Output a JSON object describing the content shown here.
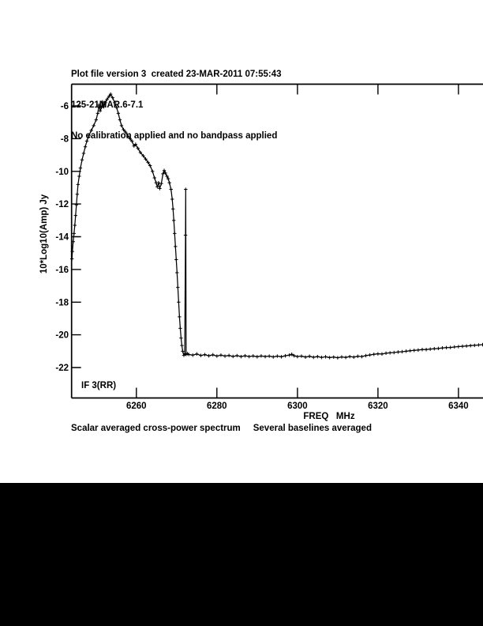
{
  "colors": {
    "background": "#ffffff",
    "ink": "#000000",
    "bottom_band": "#000000"
  },
  "chart_data": {
    "type": "line",
    "title_lines": [
      "Plot file version 3  created 23-MAR-2011 07:55:43",
      "125-21MAR.6-7.1",
      "No calibration applied and no bandpass applied"
    ],
    "caption": "Scalar averaged cross-power spectrum     Several baselines averaged",
    "annotation": "IF 3(RR)",
    "xlabel": "FREQ   MHz",
    "ylabel": "10*Log10(Amp) Jy",
    "xlim": [
      6243.9,
      6346.1
    ],
    "ylim": [
      -23.86,
      -4.67
    ],
    "xticks": [
      6260,
      6280,
      6300,
      6320,
      6340
    ],
    "yticks": [
      -6,
      -8,
      -10,
      -12,
      -14,
      -16,
      -18,
      -20,
      -22
    ],
    "grid": false,
    "legend": null,
    "line_color": "#000000",
    "marker": "plus",
    "series": [
      {
        "name": "scalar averaged cross-power spectrum",
        "points": [
          [
            6244.0,
            -15.35
          ],
          [
            6244.1,
            -14.9
          ],
          [
            6244.3,
            -14.3
          ],
          [
            6244.5,
            -13.8
          ],
          [
            6244.7,
            -13.3
          ],
          [
            6244.9,
            -12.7
          ],
          [
            6245.1,
            -12.05
          ],
          [
            6245.3,
            -11.4
          ],
          [
            6245.5,
            -10.8
          ],
          [
            6245.8,
            -10.3
          ],
          [
            6246.1,
            -9.8
          ],
          [
            6246.5,
            -9.3
          ],
          [
            6246.9,
            -8.9
          ],
          [
            6247.3,
            -8.5
          ],
          [
            6247.7,
            -8.15
          ],
          [
            6248.2,
            -7.8
          ],
          [
            6248.8,
            -7.5
          ],
          [
            6249.4,
            -7.2
          ],
          [
            6250.0,
            -6.85
          ],
          [
            6250.4,
            -6.45
          ],
          [
            6250.7,
            -5.95
          ],
          [
            6251.0,
            -6.3
          ],
          [
            6251.3,
            -6.1
          ],
          [
            6251.6,
            -5.75
          ],
          [
            6251.9,
            -6.05
          ],
          [
            6252.3,
            -5.8
          ],
          [
            6252.7,
            -5.6
          ],
          [
            6253.2,
            -5.42
          ],
          [
            6253.6,
            -5.28
          ],
          [
            6254.1,
            -5.5
          ],
          [
            6254.6,
            -5.8
          ],
          [
            6255.1,
            -6.1
          ],
          [
            6255.5,
            -6.45
          ],
          [
            6255.9,
            -6.85
          ],
          [
            6256.3,
            -7.2
          ],
          [
            6256.8,
            -7.45
          ],
          [
            6257.3,
            -7.6
          ],
          [
            6257.9,
            -7.85
          ],
          [
            6258.4,
            -8.0
          ],
          [
            6258.9,
            -8.15
          ],
          [
            6259.4,
            -8.45
          ],
          [
            6259.8,
            -8.35
          ],
          [
            6260.4,
            -8.6
          ],
          [
            6261.0,
            -8.85
          ],
          [
            6261.7,
            -9.05
          ],
          [
            6262.3,
            -9.25
          ],
          [
            6262.9,
            -9.45
          ],
          [
            6263.4,
            -9.65
          ],
          [
            6264.0,
            -10.0
          ],
          [
            6264.5,
            -10.4
          ],
          [
            6264.9,
            -10.7
          ],
          [
            6265.2,
            -10.95
          ],
          [
            6265.5,
            -10.7
          ],
          [
            6265.8,
            -11.05
          ],
          [
            6266.2,
            -10.75
          ],
          [
            6266.6,
            -10.15
          ],
          [
            6266.9,
            -9.95
          ],
          [
            6267.2,
            -10.1
          ],
          [
            6267.6,
            -10.3
          ],
          [
            6267.9,
            -10.45
          ],
          [
            6268.2,
            -10.7
          ],
          [
            6268.6,
            -11.1
          ],
          [
            6268.9,
            -11.7
          ],
          [
            6269.1,
            -12.3
          ],
          [
            6269.3,
            -13.0
          ],
          [
            6269.5,
            -13.8
          ],
          [
            6269.7,
            -14.6
          ],
          [
            6269.9,
            -15.4
          ],
          [
            6270.1,
            -16.2
          ],
          [
            6270.3,
            -17.1
          ],
          [
            6270.5,
            -18.0
          ],
          [
            6270.7,
            -18.9
          ],
          [
            6270.9,
            -19.6
          ],
          [
            6271.1,
            -20.2
          ],
          [
            6271.3,
            -20.65
          ],
          [
            6271.5,
            -21.0
          ],
          [
            6271.8,
            -21.25
          ],
          [
            6272.0,
            -21.15
          ],
          [
            6272.2,
            -13.9
          ],
          [
            6272.25,
            -11.1
          ],
          [
            6272.35,
            -21.2
          ],
          [
            6272.7,
            -21.15
          ],
          [
            6273.0,
            -21.2
          ],
          [
            6274,
            -21.24
          ],
          [
            6275,
            -21.17
          ],
          [
            6276,
            -21.26
          ],
          [
            6277,
            -21.21
          ],
          [
            6278,
            -21.28
          ],
          [
            6279,
            -21.22
          ],
          [
            6280,
            -21.3
          ],
          [
            6281,
            -21.24
          ],
          [
            6282,
            -21.3
          ],
          [
            6283,
            -21.26
          ],
          [
            6284,
            -21.32
          ],
          [
            6285,
            -21.27
          ],
          [
            6286,
            -21.33
          ],
          [
            6287,
            -21.28
          ],
          [
            6288,
            -21.33
          ],
          [
            6289,
            -21.29
          ],
          [
            6290,
            -21.34
          ],
          [
            6291,
            -21.29
          ],
          [
            6292,
            -21.33
          ],
          [
            6293,
            -21.3
          ],
          [
            6294,
            -21.35
          ],
          [
            6295,
            -21.3
          ],
          [
            6296,
            -21.34
          ],
          [
            6297,
            -21.28
          ],
          [
            6298,
            -21.24
          ],
          [
            6298.6,
            -21.19
          ],
          [
            6299.2,
            -21.28
          ],
          [
            6300,
            -21.33
          ],
          [
            6301,
            -21.3
          ],
          [
            6302,
            -21.36
          ],
          [
            6303,
            -21.31
          ],
          [
            6304,
            -21.37
          ],
          [
            6305,
            -21.33
          ],
          [
            6306,
            -21.38
          ],
          [
            6307,
            -21.34
          ],
          [
            6308,
            -21.39
          ],
          [
            6309,
            -21.36
          ],
          [
            6310,
            -21.4
          ],
          [
            6311,
            -21.35
          ],
          [
            6312,
            -21.38
          ],
          [
            6313,
            -21.33
          ],
          [
            6314,
            -21.36
          ],
          [
            6315,
            -21.31
          ],
          [
            6316,
            -21.33
          ],
          [
            6317,
            -21.27
          ],
          [
            6318,
            -21.23
          ],
          [
            6319,
            -21.19
          ],
          [
            6320,
            -21.16
          ],
          [
            6321,
            -21.17
          ],
          [
            6322,
            -21.12
          ],
          [
            6323,
            -21.1
          ],
          [
            6324,
            -21.08
          ],
          [
            6325,
            -21.05
          ],
          [
            6326,
            -21.03
          ],
          [
            6327,
            -21.0
          ],
          [
            6328,
            -20.97
          ],
          [
            6329,
            -20.95
          ],
          [
            6330,
            -20.93
          ],
          [
            6331,
            -20.9
          ],
          [
            6332,
            -20.9
          ],
          [
            6333,
            -20.87
          ],
          [
            6334,
            -20.85
          ],
          [
            6335,
            -20.83
          ],
          [
            6336,
            -20.8
          ],
          [
            6337,
            -20.78
          ],
          [
            6338,
            -20.77
          ],
          [
            6339,
            -20.74
          ],
          [
            6340,
            -20.72
          ],
          [
            6341,
            -20.7
          ],
          [
            6342,
            -20.68
          ],
          [
            6343,
            -20.66
          ],
          [
            6344,
            -20.64
          ],
          [
            6345,
            -20.62
          ],
          [
            6346,
            -20.6
          ]
        ]
      }
    ]
  }
}
